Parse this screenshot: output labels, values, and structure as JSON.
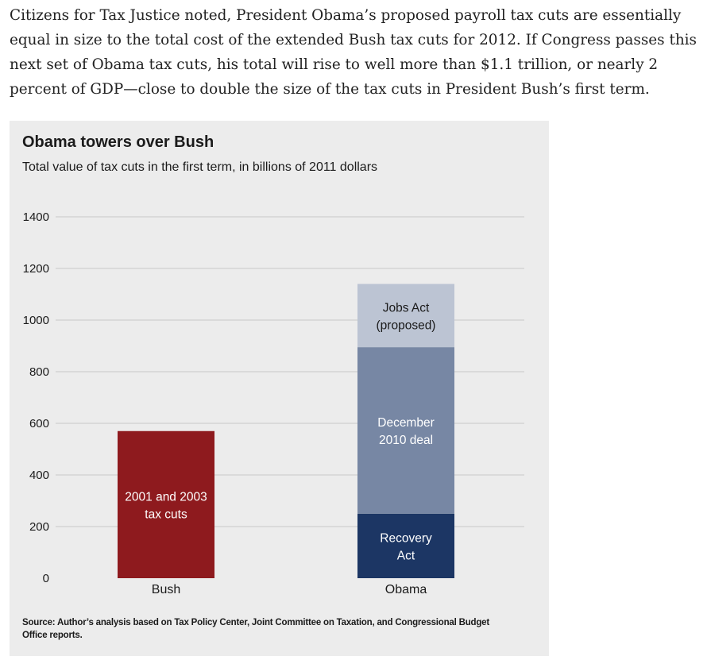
{
  "article": {
    "paragraph": "Citizens for Tax Justice noted, President Obama’s proposed payroll tax cuts are essentially equal in size to the total cost of the extended Bush tax cuts for 2012. If Congress passes this next set of Obama tax cuts, his total will rise to well more than $1.1 trillion, or nearly 2 percent of GDP—close to double the size of the tax cuts in President Bush’s first term."
  },
  "chart_data": {
    "type": "bar",
    "stacked": true,
    "title": "Obama towers over Bush",
    "subtitle": "Total value of tax cuts in the first term, in billions of 2011 dollars",
    "xlabel": "",
    "ylabel": "",
    "ylim": [
      0,
      1400
    ],
    "yticks": [
      0,
      200,
      400,
      600,
      800,
      1000,
      1200,
      1400
    ],
    "grid": true,
    "categories": [
      "Bush",
      "Obama"
    ],
    "segments": [
      {
        "category": "Bush",
        "label_lines": [
          "2001 and 2003",
          "tax cuts"
        ],
        "value": 570,
        "color": "#8e1a1e",
        "label_color": "#ffffff"
      },
      {
        "category": "Obama",
        "label_lines": [
          "Recovery",
          "Act"
        ],
        "value": 250,
        "color": "#1c3664",
        "label_color": "#ffffff"
      },
      {
        "category": "Obama",
        "label_lines": [
          "December",
          "2010 deal"
        ],
        "value": 645,
        "color": "#7787a4",
        "label_color": "#ffffff"
      },
      {
        "category": "Obama",
        "label_lines": [
          "Jobs Act",
          "(proposed)"
        ],
        "value": 245,
        "color": "#bcc4d3",
        "label_color": "#1b1b1b"
      }
    ],
    "source": "Source: Author’s analysis based on Tax Policy Center, Joint Committee on Taxation, and Congressional Budget Office reports."
  },
  "colors": {
    "panel_background": "#ececec",
    "gridline": "#c9c9c9",
    "text": "#1b1b1b"
  }
}
